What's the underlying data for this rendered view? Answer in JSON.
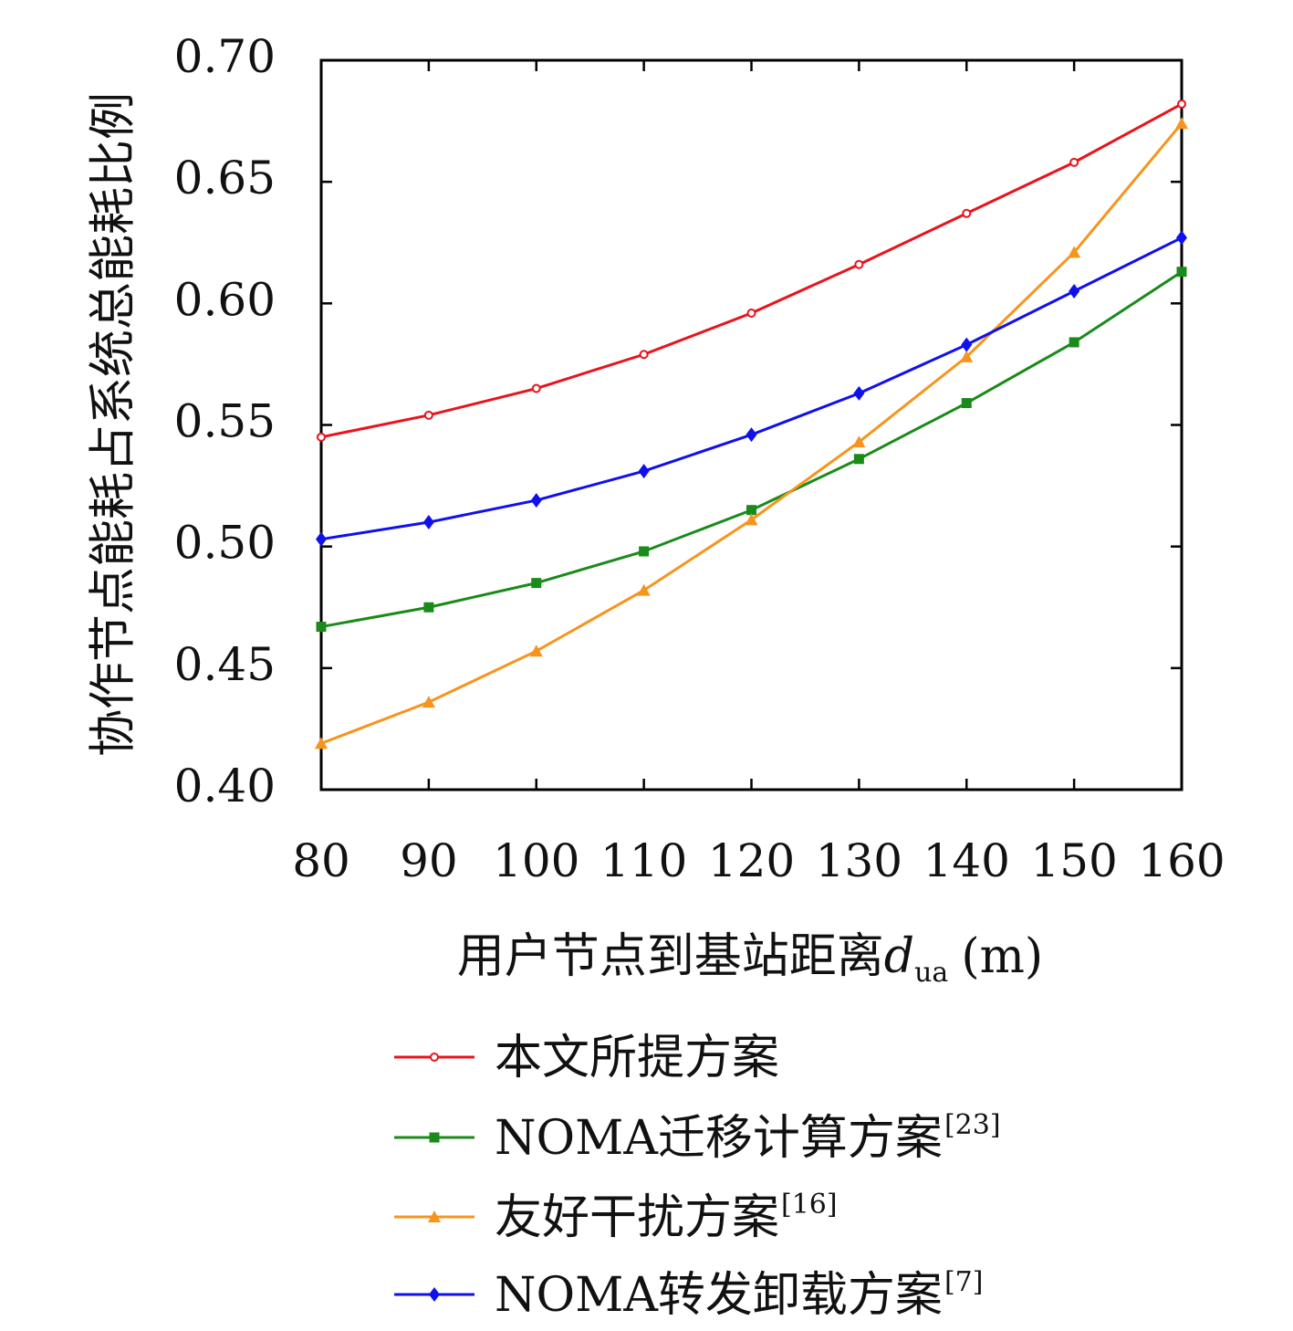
{
  "chart_data": {
    "type": "line",
    "xlabel_text": "用户节点到基站距离",
    "xlabel_var": "d",
    "xlabel_sub": "ua",
    "xlabel_unit": "(m)",
    "ylabel": "协作节点能耗占系统总能耗比例",
    "x": [
      80,
      90,
      100,
      110,
      120,
      130,
      140,
      150,
      160
    ],
    "xlim": [
      80,
      160
    ],
    "ylim": [
      0.4,
      0.7
    ],
    "x_ticks": [
      "80",
      "90",
      "100",
      "110",
      "120",
      "130",
      "140",
      "150",
      "160"
    ],
    "y_ticks": [
      "0.40",
      "0.45",
      "0.50",
      "0.55",
      "0.60",
      "0.65",
      "0.70"
    ],
    "y_tick_values": [
      0.4,
      0.45,
      0.5,
      0.55,
      0.6,
      0.65,
      0.7
    ],
    "grid": false,
    "legend_position": "bottom",
    "series": [
      {
        "name": "本文所提方案",
        "ref": "",
        "color": "#e8141c",
        "marker": "circle",
        "values": [
          0.545,
          0.554,
          0.565,
          0.579,
          0.596,
          0.616,
          0.637,
          0.658,
          0.682
        ]
      },
      {
        "name": "NOMA迁移计算方案",
        "ref": "[23]",
        "color": "#1a8a1a",
        "marker": "square",
        "values": [
          0.467,
          0.475,
          0.485,
          0.498,
          0.515,
          0.536,
          0.559,
          0.584,
          0.613
        ]
      },
      {
        "name": "友好干扰方案",
        "ref": "[16]",
        "color": "#f7941d",
        "marker": "triangle",
        "values": [
          0.419,
          0.436,
          0.457,
          0.482,
          0.511,
          0.543,
          0.578,
          0.621,
          0.674
        ]
      },
      {
        "name": "NOMA转发卸载方案",
        "ref": "[7]",
        "color": "#1010ee",
        "marker": "diamond",
        "values": [
          0.503,
          0.51,
          0.519,
          0.531,
          0.546,
          0.563,
          0.583,
          0.605,
          0.627
        ]
      }
    ]
  }
}
